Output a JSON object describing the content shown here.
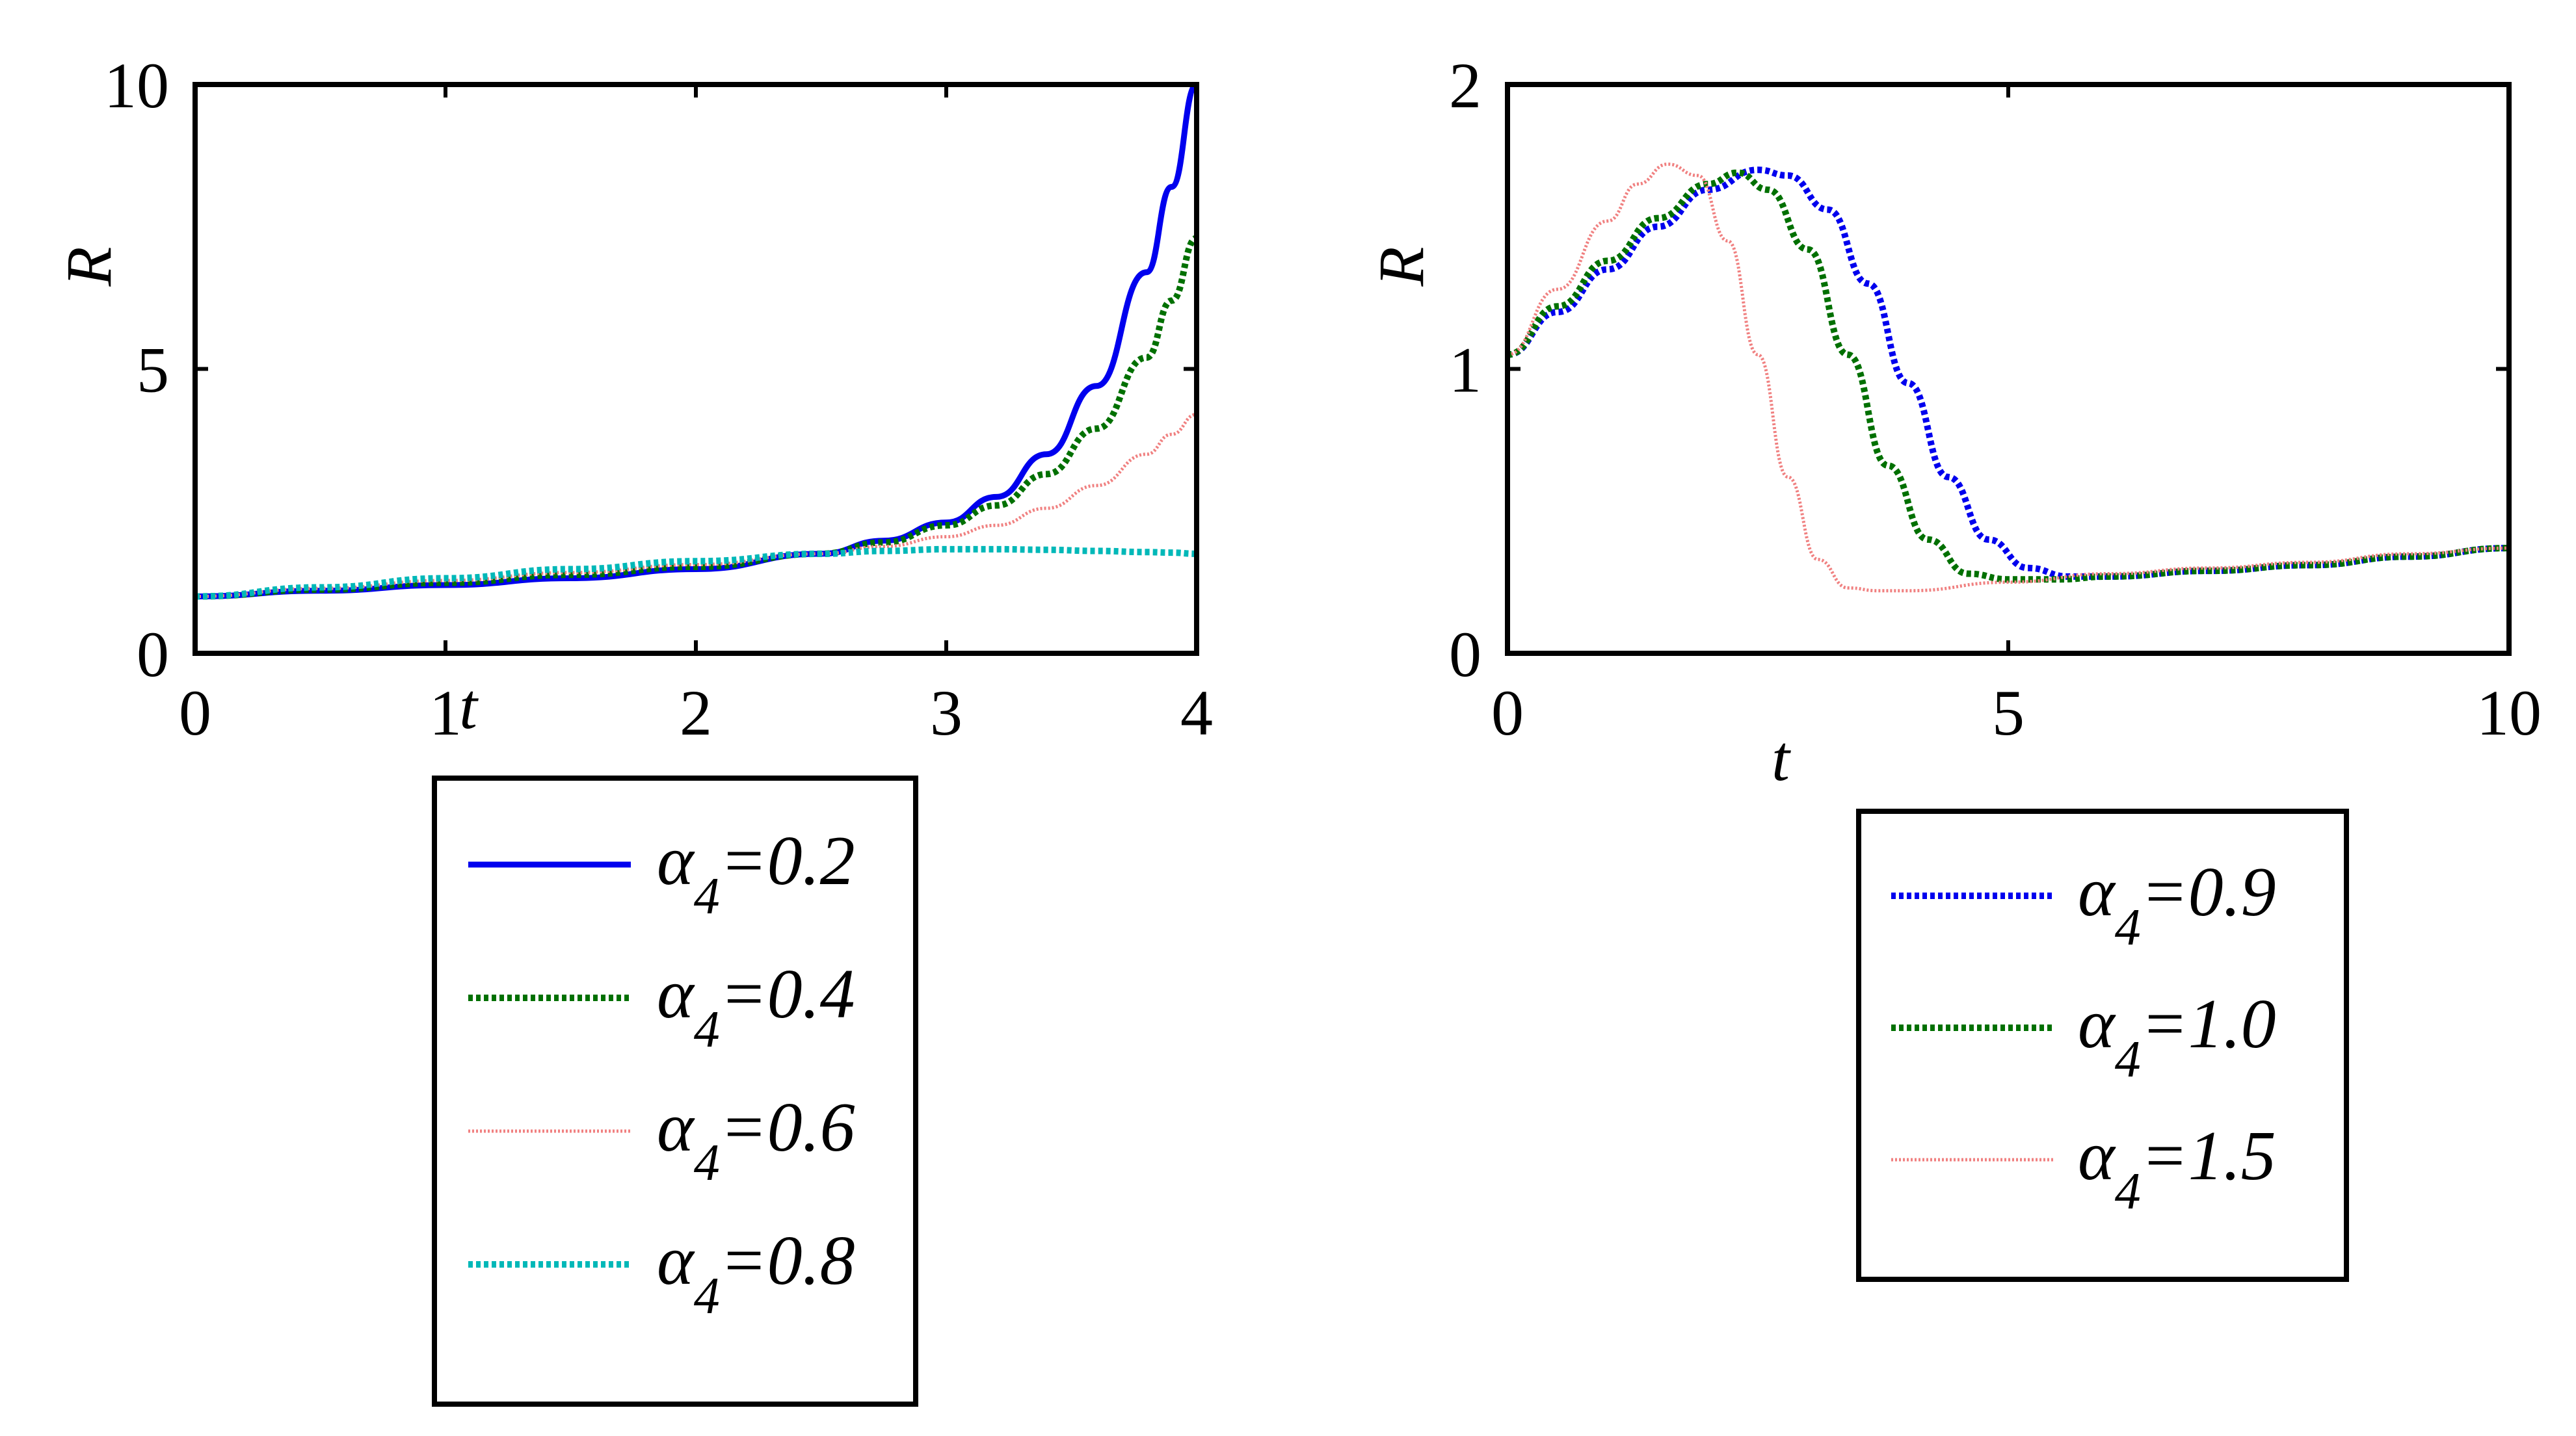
{
  "chart_data": [
    {
      "type": "line",
      "title": "",
      "xlabel": "t",
      "ylabel": "R",
      "xlim": [
        0,
        4
      ],
      "ylim": [
        0,
        10
      ],
      "xticks": [
        0,
        1,
        2,
        3,
        4
      ],
      "yticks": [
        0,
        5,
        10
      ],
      "grid": false,
      "legend_position": "below",
      "x": [
        0,
        0.5,
        1,
        1.5,
        2,
        2.5,
        2.75,
        3,
        3.2,
        3.4,
        3.6,
        3.8,
        3.9,
        4
      ],
      "series": [
        {
          "name": "α4=0.2",
          "legend_base": "α",
          "legend_sub": "4",
          "legend_value": "=0.2",
          "color": "#0000ee",
          "style": "solid",
          "values": [
            1.0,
            1.1,
            1.2,
            1.32,
            1.48,
            1.75,
            1.98,
            2.3,
            2.75,
            3.5,
            4.7,
            6.7,
            8.2,
            10.0
          ]
        },
        {
          "name": "α4=0.4",
          "legend_base": "α",
          "legend_sub": "4",
          "legend_value": "=0.4",
          "color": "#007000",
          "style": "dotted",
          "values": [
            1.0,
            1.12,
            1.24,
            1.38,
            1.52,
            1.75,
            1.95,
            2.25,
            2.6,
            3.15,
            3.95,
            5.2,
            6.2,
            7.3
          ]
        },
        {
          "name": "α4=0.6",
          "legend_base": "α",
          "legend_sub": "4",
          "legend_value": "=0.6",
          "color": "#f08080",
          "style": "thin",
          "values": [
            1.0,
            1.14,
            1.28,
            1.42,
            1.56,
            1.75,
            1.88,
            2.05,
            2.25,
            2.55,
            2.95,
            3.5,
            3.85,
            4.2
          ]
        },
        {
          "name": "α4=0.8",
          "legend_base": "α",
          "legend_sub": "4",
          "legend_value": "=0.8",
          "color": "#00b8b8",
          "style": "dotted",
          "values": [
            1.0,
            1.16,
            1.32,
            1.48,
            1.62,
            1.75,
            1.8,
            1.83,
            1.83,
            1.82,
            1.8,
            1.78,
            1.77,
            1.75
          ]
        }
      ]
    },
    {
      "type": "line",
      "title": "",
      "xlabel": "t",
      "ylabel": "R",
      "xlim": [
        0,
        10
      ],
      "ylim": [
        0,
        2
      ],
      "xticks": [
        0,
        5,
        10
      ],
      "yticks": [
        0,
        1,
        2
      ],
      "grid": false,
      "legend_position": "below",
      "series": [
        {
          "name": "α4=0.9",
          "legend_base": "α",
          "legend_sub": "4",
          "legend_value": "=0.9",
          "color": "#0000ee",
          "style": "dotted",
          "x": [
            0,
            0.5,
            1,
            1.5,
            2,
            2.5,
            2.8,
            3.2,
            3.6,
            4,
            4.4,
            4.8,
            5.2,
            5.6,
            6,
            7,
            8,
            9,
            10
          ],
          "values": [
            1.05,
            1.2,
            1.35,
            1.5,
            1.63,
            1.7,
            1.68,
            1.56,
            1.3,
            0.95,
            0.62,
            0.4,
            0.3,
            0.27,
            0.27,
            0.29,
            0.31,
            0.34,
            0.37
          ]
        },
        {
          "name": "α4=1.0",
          "legend_base": "α",
          "legend_sub": "4",
          "legend_value": "=1.0",
          "color": "#007000",
          "style": "dotted",
          "x": [
            0,
            0.5,
            1,
            1.5,
            2,
            2.3,
            2.6,
            3,
            3.4,
            3.8,
            4.2,
            4.6,
            5,
            5.5,
            6,
            7,
            8,
            9,
            10
          ],
          "values": [
            1.05,
            1.22,
            1.38,
            1.53,
            1.65,
            1.69,
            1.63,
            1.42,
            1.05,
            0.66,
            0.4,
            0.28,
            0.26,
            0.26,
            0.27,
            0.29,
            0.31,
            0.34,
            0.37
          ]
        },
        {
          "name": "α4=1.5",
          "legend_base": "α",
          "legend_sub": "4",
          "legend_value": "=1.5",
          "color": "#f08080",
          "style": "thin",
          "x": [
            0,
            0.5,
            1,
            1.3,
            1.6,
            1.9,
            2.2,
            2.5,
            2.8,
            3.1,
            3.4,
            3.7,
            4,
            5,
            6,
            7,
            8,
            9,
            10
          ],
          "values": [
            1.05,
            1.28,
            1.52,
            1.65,
            1.72,
            1.68,
            1.45,
            1.05,
            0.62,
            0.33,
            0.23,
            0.22,
            0.22,
            0.25,
            0.28,
            0.3,
            0.32,
            0.35,
            0.37
          ]
        }
      ]
    }
  ]
}
